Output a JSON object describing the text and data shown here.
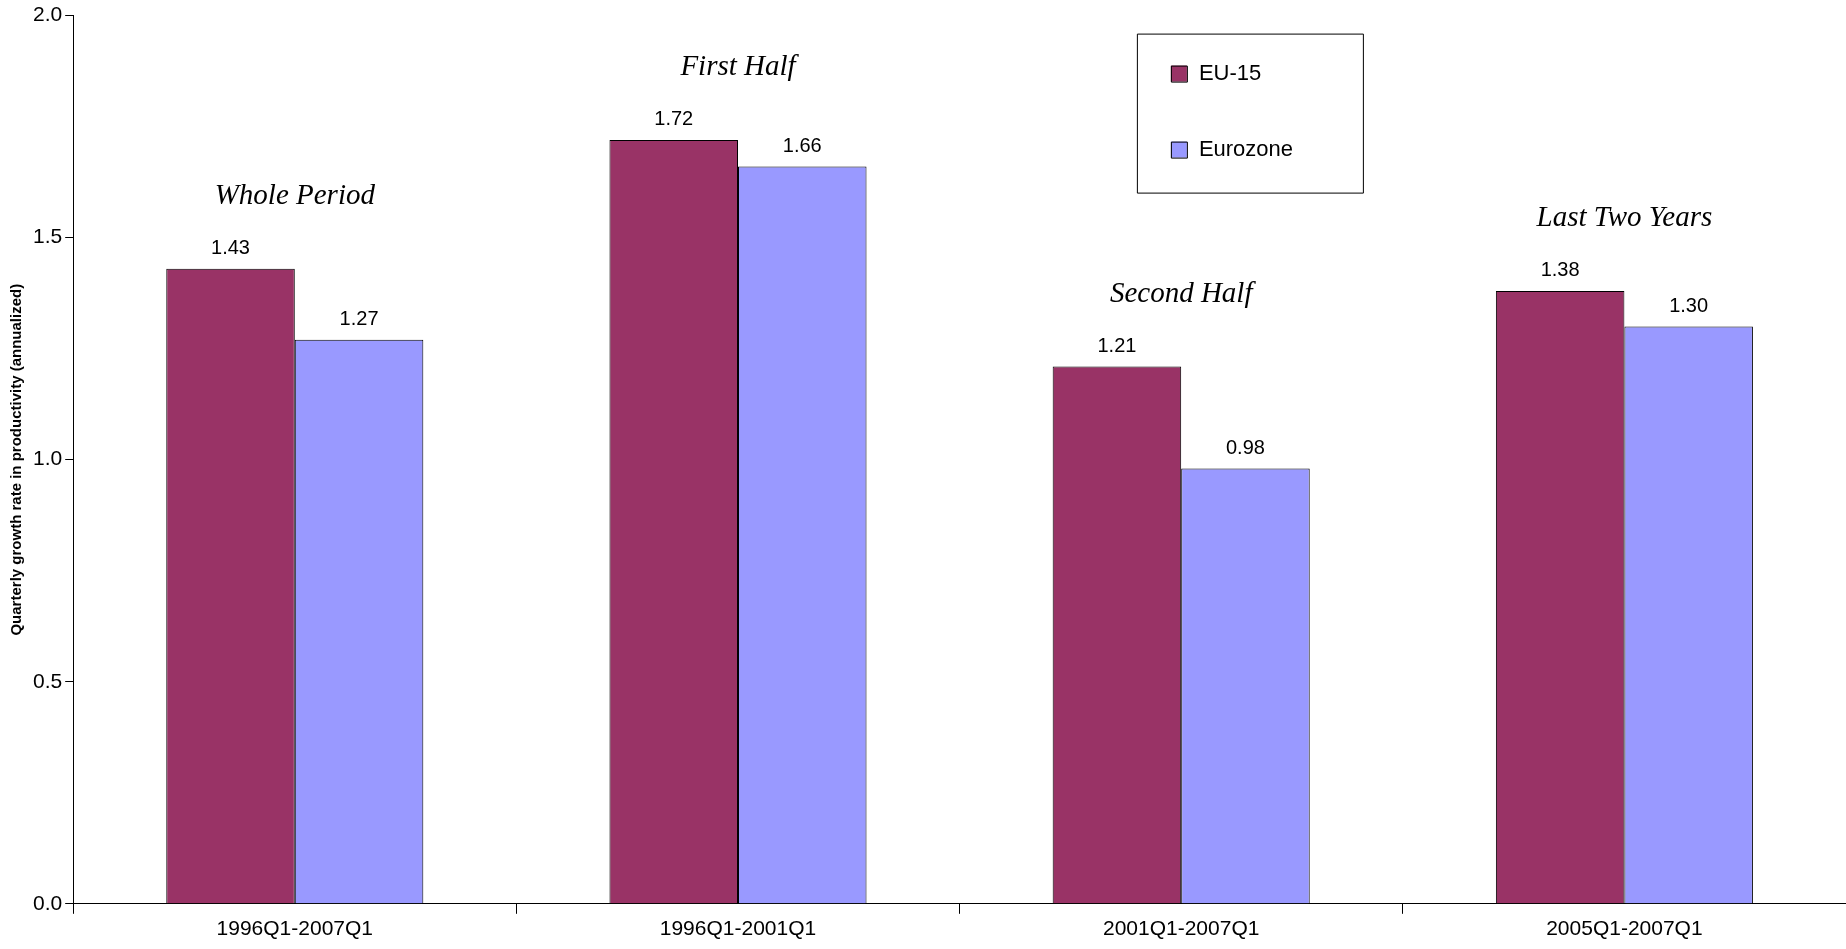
{
  "chart_data": {
    "type": "bar",
    "ylabel": "Quarterly growth rate in productivity (annualized)",
    "categories": [
      "1996Q1-2007Q1",
      "1996Q1-2001Q1",
      "2001Q1-2007Q1",
      "2005Q1-2007Q1"
    ],
    "series": [
      {
        "name": "EU-15",
        "color": "#993366",
        "values": [
          1.43,
          1.72,
          1.21,
          1.38
        ],
        "value_labels": [
          "1.43",
          "1.72",
          "1.21",
          "1.38"
        ]
      },
      {
        "name": "Eurozone",
        "color": "#9999ff",
        "values": [
          1.27,
          1.66,
          0.98,
          1.3
        ],
        "value_labels": [
          "1.27",
          "1.66",
          "0.98",
          "1.30"
        ]
      }
    ],
    "ylim": [
      0,
      2
    ],
    "yticks": [
      {
        "value": 0,
        "label": "0.0"
      },
      0.5,
      {
        "value": 1,
        "label": "1.0"
      },
      1.5,
      {
        "value": 2,
        "label": "2.0"
      }
    ],
    "grid": false,
    "legend": "top right",
    "annotations": [
      "Whole Period",
      "First Half",
      "Second Half",
      "Last Two Years"
    ]
  }
}
